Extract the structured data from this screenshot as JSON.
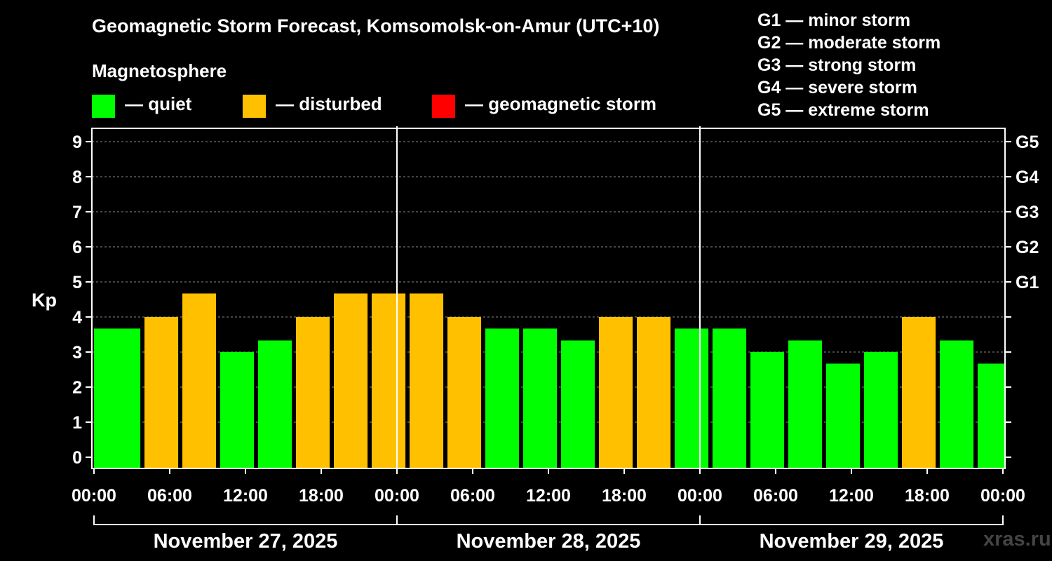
{
  "title": "Geomagnetic Storm Forecast, Komsomolsk-on-Amur (UTC+10)",
  "subtitle": "Magnetosphere",
  "legend": [
    {
      "label": "— quiet",
      "color": "#00ff00"
    },
    {
      "label": "— disturbed",
      "color": "#ffc000"
    },
    {
      "label": "— geomagnetic storm",
      "color": "#ff0000"
    }
  ],
  "storm_levels": [
    {
      "label": "G1 — minor storm"
    },
    {
      "label": "G2 — moderate storm"
    },
    {
      "label": "G3 — strong storm"
    },
    {
      "label": "G4 — severe storm"
    },
    {
      "label": "G5 — extreme storm"
    }
  ],
  "watermark": "xras.ru",
  "chart_data": {
    "type": "bar",
    "ylabel": "Kp",
    "ylim": [
      0,
      9
    ],
    "yticks": [
      "0",
      "1",
      "2",
      "3",
      "4",
      "5",
      "6",
      "7",
      "8",
      "9"
    ],
    "right_axis_ticks": [
      {
        "kp": 5,
        "label": "G1"
      },
      {
        "kp": 6,
        "label": "G2"
      },
      {
        "kp": 7,
        "label": "G3"
      },
      {
        "kp": 8,
        "label": "G4"
      },
      {
        "kp": 9,
        "label": "G5"
      }
    ],
    "grid": true,
    "xlim_hours": [
      0,
      72
    ],
    "x_tick_labels": [
      "00:00",
      "06:00",
      "12:00",
      "18:00",
      "00:00",
      "06:00",
      "12:00",
      "18:00",
      "00:00",
      "06:00",
      "12:00",
      "18:00",
      "00:00"
    ],
    "date_labels": [
      "November 27, 2025",
      "November 28, 2025",
      "November 29, 2025"
    ],
    "bar_width_hours": 2.67,
    "colors": {
      "quiet": "#00ff00",
      "disturbed": "#ffc000",
      "storm": "#ff0000"
    },
    "bars": [
      {
        "start_hour": 0,
        "value": 3.67,
        "status": "quiet"
      },
      {
        "start_hour": 1,
        "value": 3.67,
        "status": "quiet"
      },
      {
        "start_hour": 4,
        "value": 4.0,
        "status": "disturbed"
      },
      {
        "start_hour": 7,
        "value": 4.67,
        "status": "disturbed"
      },
      {
        "start_hour": 10,
        "value": 3.0,
        "status": "quiet"
      },
      {
        "start_hour": 13,
        "value": 3.33,
        "status": "quiet"
      },
      {
        "start_hour": 16,
        "value": 4.0,
        "status": "disturbed"
      },
      {
        "start_hour": 19,
        "value": 4.67,
        "status": "disturbed"
      },
      {
        "start_hour": 22,
        "value": 4.67,
        "status": "disturbed"
      },
      {
        "start_hour": 25,
        "value": 4.67,
        "status": "disturbed"
      },
      {
        "start_hour": 28,
        "value": 4.0,
        "status": "disturbed"
      },
      {
        "start_hour": 31,
        "value": 3.67,
        "status": "quiet"
      },
      {
        "start_hour": 34,
        "value": 3.67,
        "status": "quiet"
      },
      {
        "start_hour": 37,
        "value": 3.33,
        "status": "quiet"
      },
      {
        "start_hour": 40,
        "value": 4.0,
        "status": "disturbed"
      },
      {
        "start_hour": 43,
        "value": 4.0,
        "status": "disturbed"
      },
      {
        "start_hour": 46,
        "value": 3.67,
        "status": "quiet"
      },
      {
        "start_hour": 49,
        "value": 3.67,
        "status": "quiet"
      },
      {
        "start_hour": 52,
        "value": 3.0,
        "status": "quiet"
      },
      {
        "start_hour": 55,
        "value": 3.33,
        "status": "quiet"
      },
      {
        "start_hour": 58,
        "value": 2.67,
        "status": "quiet"
      },
      {
        "start_hour": 61,
        "value": 3.0,
        "status": "quiet"
      },
      {
        "start_hour": 64,
        "value": 4.0,
        "status": "disturbed"
      },
      {
        "start_hour": 67,
        "value": 3.33,
        "status": "quiet"
      },
      {
        "start_hour": 70,
        "value": 2.67,
        "status": "quiet"
      }
    ]
  }
}
